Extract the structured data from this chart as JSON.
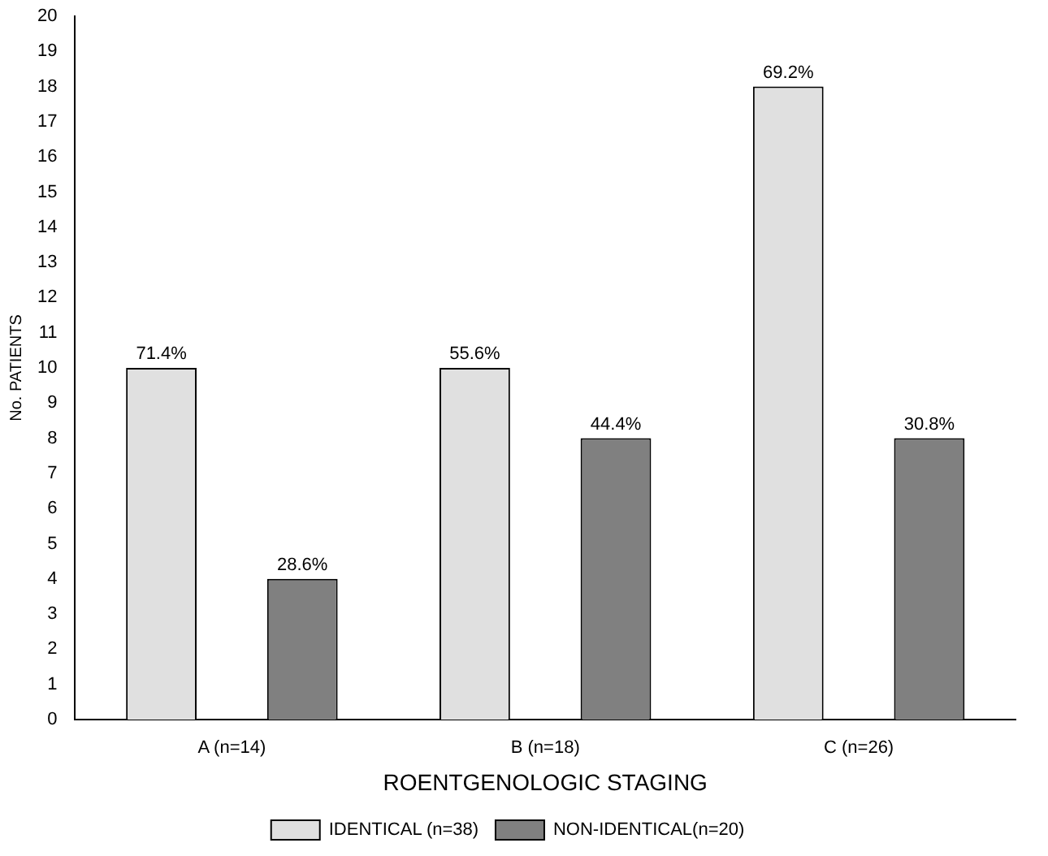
{
  "chart_data": {
    "type": "bar",
    "xlabel": "ROENTGENOLOGIC STAGING",
    "ylabel": "No. PATIENTS",
    "categories": [
      "A (n=14)",
      "B (n=18)",
      "C (n=26)"
    ],
    "series": [
      {
        "name": "IDENTICAL (n=38)",
        "color": "#e0e0e0",
        "values": [
          10,
          10,
          18
        ]
      },
      {
        "name": "NON-IDENTICAL(n=20)",
        "color": "#808080",
        "values": [
          4,
          8,
          8
        ]
      }
    ],
    "annotations": [
      "71.4%",
      "28.6%",
      "55.6%",
      "44.4%",
      "69.2%",
      "30.8%"
    ],
    "ylim": [
      0,
      20
    ],
    "yticks": [
      0,
      1,
      2,
      3,
      4,
      5,
      6,
      7,
      8,
      9,
      10,
      11,
      12,
      13,
      14,
      15,
      16,
      17,
      18,
      19,
      20
    ],
    "grid": false,
    "legend": "bottom"
  }
}
